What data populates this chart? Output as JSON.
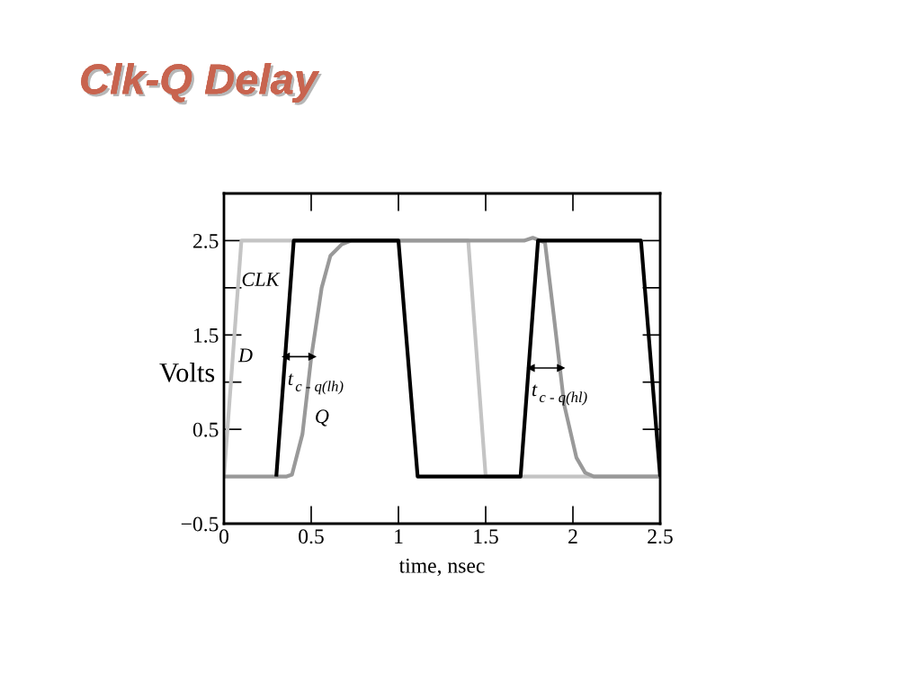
{
  "chart_data": {
    "type": "line",
    "title": "Clk-Q Delay",
    "xlabel": "time, nsec",
    "ylabel": "Volts",
    "xlim": [
      0,
      2.5
    ],
    "xticks": [
      0,
      0.5,
      1,
      1.5,
      2,
      2.5
    ],
    "ylim": [
      -0.5,
      3.0
    ],
    "yticks": [
      {
        "value": -0.5,
        "label": "−0.5"
      },
      0.5,
      1.5,
      2.5
    ],
    "grid": false,
    "legend": false,
    "marker": "none",
    "line_style": "solid",
    "series": [
      {
        "color": "#c4c4c4",
        "x": [
          0,
          0.1,
          1.4,
          1.5,
          2.5
        ],
        "values": [
          0,
          2.5,
          2.5,
          0,
          0
        ]
      },
      {
        "color": "#999999",
        "x": [
          0,
          0.36,
          0.39,
          0.45,
          0.5,
          0.56,
          0.61,
          0.675,
          0.73,
          1.72,
          1.77,
          1.84,
          1.89,
          1.95,
          2.02,
          2.07,
          2.12,
          2.5
        ],
        "values": [
          0,
          0,
          0.02,
          0.45,
          1.26,
          2.0,
          2.34,
          2.46,
          2.5,
          2.5,
          2.53,
          2.48,
          1.71,
          0.76,
          0.2,
          0.04,
          0,
          0
        ]
      },
      {
        "color": "#000000",
        "x": [
          0.3,
          0.4,
          1.0,
          1.11,
          1.7,
          1.8,
          2.39,
          2.5
        ],
        "values": [
          0,
          2.5,
          2.5,
          0,
          0,
          2.5,
          2.5,
          0
        ]
      },
      {
        "color": "#000000",
        "x": [
          0.356,
          0.505
        ],
        "values": [
          1.27,
          1.27
        ],
        "marker": "triangle"
      },
      {
        "color": "#000000",
        "x": [
          1.76,
          1.93
        ],
        "values": [
          1.15,
          1.15
        ],
        "marker": "triangle"
      }
    ],
    "annotations": [
      "CLK",
      "D",
      "Q",
      "t$_{c - q(lh)}$",
      "t$_{c - q(hl)}$"
    ]
  }
}
